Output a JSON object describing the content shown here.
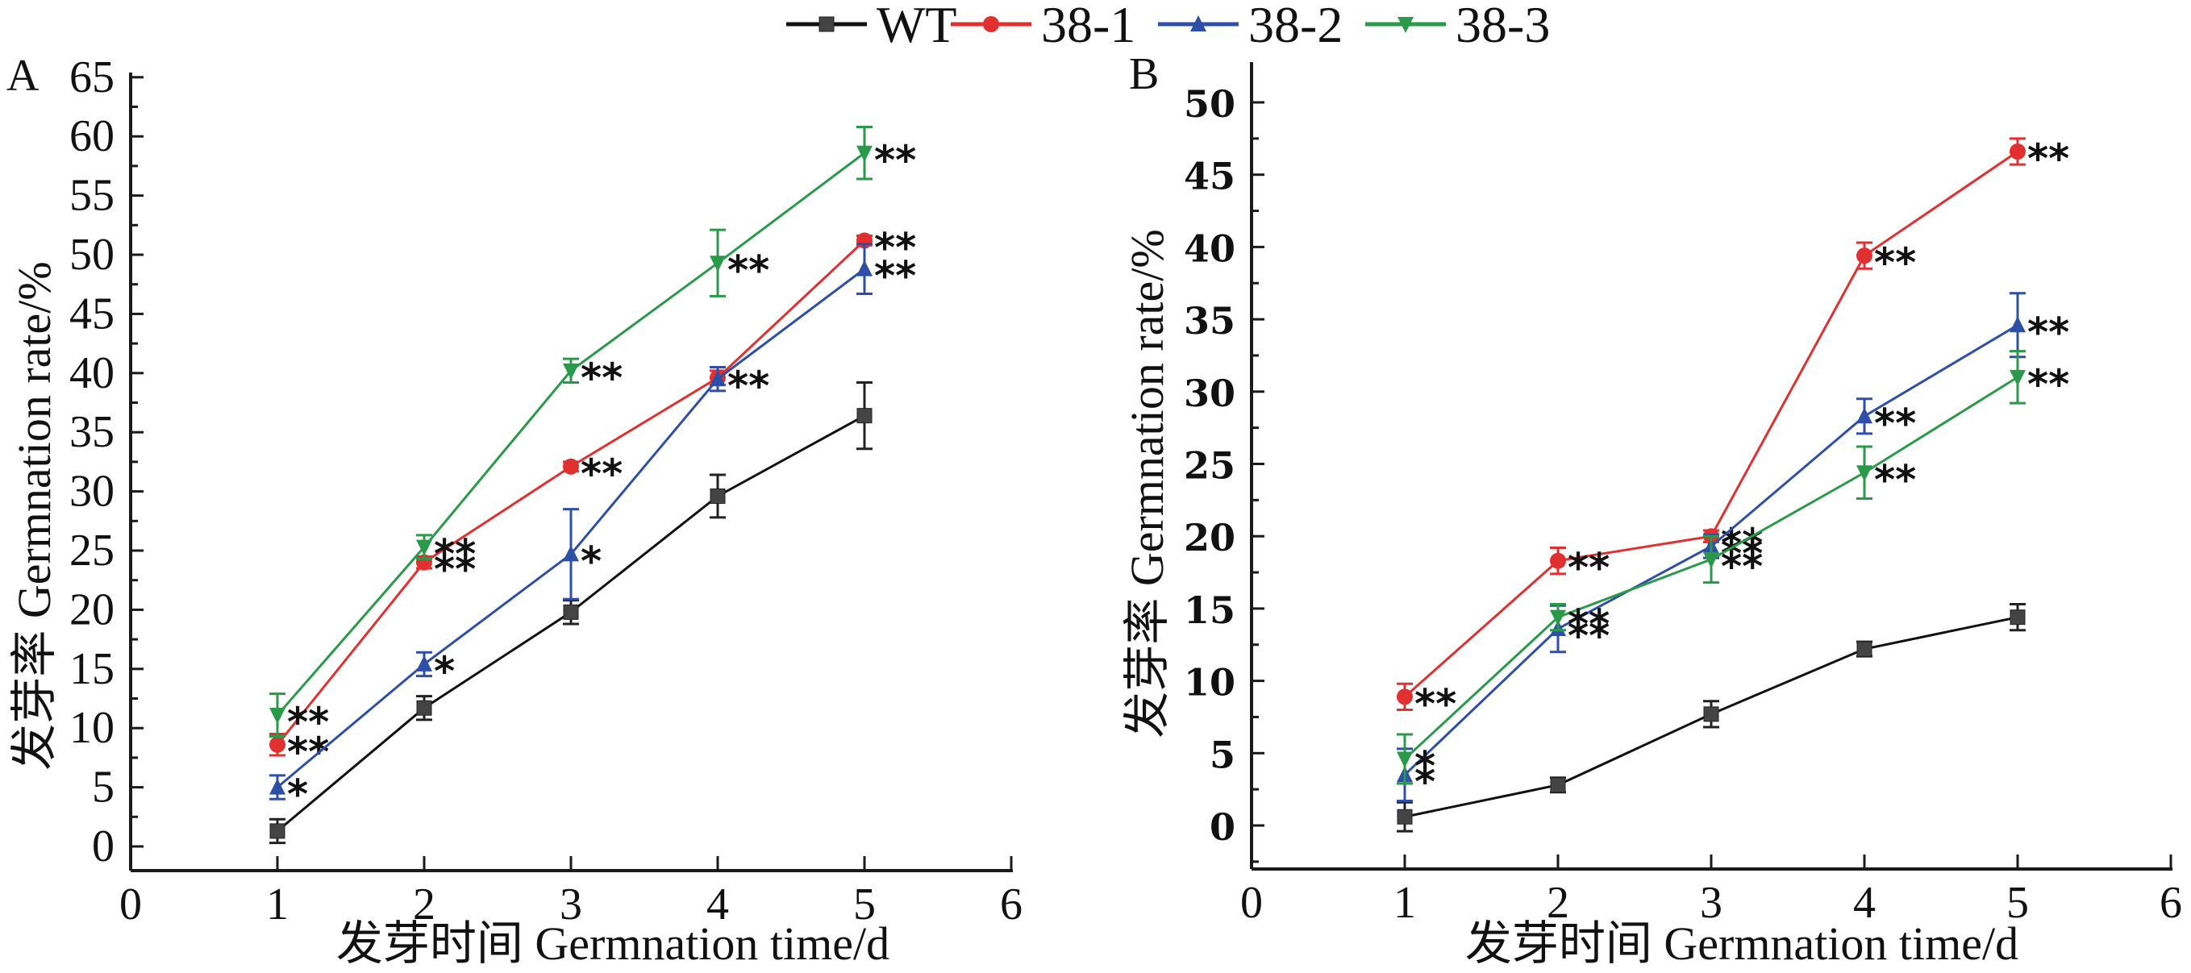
{
  "legend": {
    "position": "top-center",
    "entries": [
      {
        "name": "WT",
        "color": "#2b2b2b",
        "marker": "square"
      },
      {
        "name": "38-1",
        "color": "#e03030",
        "marker": "circle"
      },
      {
        "name": "38-2",
        "color": "#2e4fa8",
        "marker": "triangle-up"
      },
      {
        "name": "38-3",
        "color": "#2a9a4a",
        "marker": "triangle-down"
      }
    ]
  },
  "chart_data": [
    {
      "type": "line",
      "panel": "A",
      "title": "",
      "xlabel": "发芽时间 Germnation time/d",
      "ylabel": "发芽率 Germnation rate/%",
      "x": [
        1,
        2,
        3,
        4,
        5
      ],
      "xlim": [
        0,
        6
      ],
      "ylim": [
        -2,
        65
      ],
      "xticks": [
        "0",
        "1",
        "2",
        "3",
        "4",
        "5",
        "6"
      ],
      "yticks": [
        "0",
        "5",
        "10",
        "15",
        "20",
        "25",
        "30",
        "35",
        "40",
        "45",
        "50",
        "55",
        "60",
        "65"
      ],
      "grid": false,
      "series": [
        {
          "name": "WT",
          "values": [
            1.3,
            11.7,
            19.8,
            29.6,
            36.4
          ],
          "errors": [
            1.0,
            1.0,
            1.0,
            1.8,
            2.8
          ],
          "significance": [
            "",
            "",
            "",
            "",
            ""
          ]
        },
        {
          "name": "38-1",
          "values": [
            8.6,
            24.0,
            32.1,
            39.6,
            51.2
          ],
          "errors": [
            0.9,
            0.5,
            0.4,
            0.6,
            0.4
          ],
          "significance": [
            "**",
            "**",
            "**",
            "",
            "**"
          ]
        },
        {
          "name": "38-2",
          "values": [
            5.0,
            15.4,
            24.7,
            39.5,
            48.8
          ],
          "errors": [
            1.0,
            1.0,
            3.8,
            1.0,
            2.1
          ],
          "significance": [
            "*",
            "*",
            "*",
            "**",
            "**"
          ]
        },
        {
          "name": "38-3",
          "values": [
            11.1,
            25.3,
            40.2,
            49.3,
            58.6
          ],
          "errors": [
            1.8,
            1.0,
            1.0,
            2.8,
            2.2
          ],
          "significance": [
            "**",
            "**",
            "**",
            "**",
            "**"
          ]
        }
      ]
    },
    {
      "type": "line",
      "panel": "B",
      "title": "",
      "xlabel": "发芽时间 Germnation time/d",
      "ylabel": "发芽率 Germnation rate/%",
      "x": [
        1,
        2,
        3,
        4,
        5
      ],
      "xlim": [
        0,
        6
      ],
      "ylim": [
        -3,
        52.5
      ],
      "xticks": [
        "0",
        "1",
        "2",
        "3",
        "4",
        "5",
        "6"
      ],
      "yticks": [
        "0",
        "5",
        "10",
        "15",
        "20",
        "25",
        "30",
        "35",
        "40",
        "45",
        "50"
      ],
      "grid": false,
      "series": [
        {
          "name": "WT",
          "values": [
            0.6,
            2.8,
            7.7,
            12.2,
            14.4
          ],
          "errors": [
            1.0,
            0.5,
            0.9,
            0.5,
            0.9
          ],
          "significance": [
            "",
            "",
            "",
            "",
            ""
          ]
        },
        {
          "name": "38-1",
          "values": [
            8.9,
            18.3,
            20.0,
            39.4,
            46.6
          ],
          "errors": [
            0.9,
            0.9,
            0.4,
            0.9,
            0.9
          ],
          "significance": [
            "**",
            "**",
            "**",
            "**",
            "**"
          ]
        },
        {
          "name": "38-2",
          "values": [
            3.5,
            13.6,
            19.3,
            28.3,
            34.6
          ],
          "errors": [
            1.8,
            1.6,
            0.8,
            1.2,
            2.2
          ],
          "significance": [
            "*",
            "**",
            "**",
            "**",
            "**"
          ]
        },
        {
          "name": "38-3",
          "values": [
            4.6,
            14.4,
            18.4,
            24.4,
            31.0
          ],
          "errors": [
            1.7,
            0.9,
            1.6,
            1.8,
            1.8
          ],
          "significance": [
            "*",
            "**",
            "**",
            "**",
            "**"
          ]
        }
      ]
    }
  ]
}
